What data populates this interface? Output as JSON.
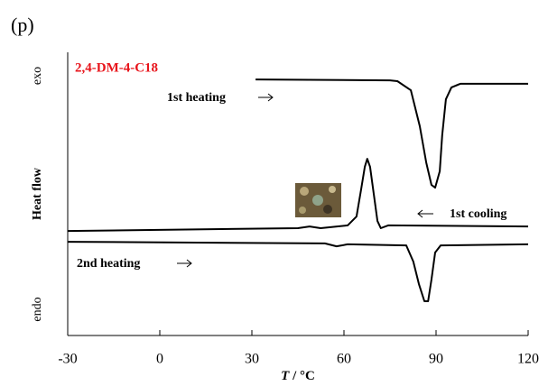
{
  "chart_data": {
    "type": "line",
    "panel_label": "(p)",
    "title": "2,4-DM-4-C18",
    "ylabel": "Heat flow",
    "y_top_label": "exo",
    "y_bottom_label": "endo",
    "xlabel_var": "T",
    "xlabel_unit": "/ °C",
    "xlim": [
      -30,
      120
    ],
    "xticks": [
      -30,
      0,
      30,
      60,
      90,
      120
    ],
    "ylim": [
      0,
      100
    ],
    "series": [
      {
        "name": "1st heating",
        "color": "#000000",
        "x": [
          31.2,
          75,
          77.4,
          81.8,
          84.7,
          86.8,
          88.5,
          89.7,
          91.2,
          92,
          93.2,
          95,
          97.9,
          120
        ],
        "values": [
          90.4,
          90.1,
          89.8,
          86.6,
          73.9,
          61.1,
          53.2,
          52.2,
          58,
          70.7,
          83.4,
          87.6,
          88.9,
          88.9
        ]
      },
      {
        "name": "1st cooling",
        "color": "#000000",
        "x": [
          -30,
          45,
          48.8,
          52.4,
          61.2,
          64.1,
          65.6,
          66.8,
          67.6,
          68.5,
          69.7,
          70.9,
          72,
          74.4,
          120
        ],
        "values": [
          36.9,
          37.9,
          38.5,
          37.9,
          38.9,
          42,
          51.6,
          59.6,
          62.4,
          59.6,
          50,
          40.4,
          37.9,
          38.9,
          38.5
        ]
      },
      {
        "name": "2nd heating",
        "color": "#000000",
        "x": [
          -30,
          53.8,
          57.6,
          61.2,
          80.3,
          82.6,
          84.4,
          86.2,
          87.4,
          88.5,
          89.7,
          91.5,
          120
        ],
        "values": [
          33.1,
          32.5,
          31.5,
          32.2,
          31.8,
          26.1,
          18.2,
          12.1,
          12.1,
          19.7,
          29.3,
          31.8,
          32.2
        ]
      }
    ]
  }
}
